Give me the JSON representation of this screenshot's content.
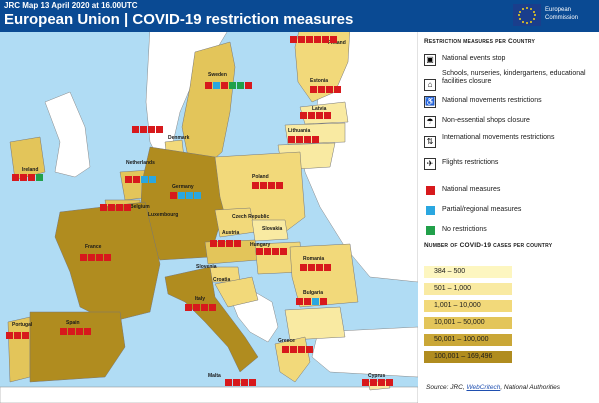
{
  "header": {
    "subtitle": "JRC Map 13 April 2020 at 16.00UTC",
    "title": "European Union | COVID-19 restriction measures",
    "logo_text_line1": "European",
    "logo_text_line2": "Commission"
  },
  "colors": {
    "sea": "#b0dcf4",
    "national": "#d7191c",
    "partial": "#2aa7e0",
    "none": "#21a04a",
    "non_eu": "#ffffff",
    "band_1": "#fdf6c0",
    "band_2": "#f9eaa2",
    "band_3": "#f2d97a",
    "band_4": "#e3c55a",
    "band_5": "#caa737",
    "band_6": "#b08c1f"
  },
  "legend": {
    "measures_title": "Restriction measures per Country",
    "measures": [
      {
        "icon": "national-events-icon",
        "glyph": "▣",
        "label": "National events stop"
      },
      {
        "icon": "school-icon",
        "glyph": "⌂",
        "label": "Schools, nurseries, kindergartens, educational facilities closure"
      },
      {
        "icon": "walking-person-icon",
        "glyph": "♿",
        "label": "National movements restrictions"
      },
      {
        "icon": "shop-icon",
        "glyph": "☂",
        "label": "Non-essential shops closure"
      },
      {
        "icon": "border-icon",
        "glyph": "⇅",
        "label": "International movements restrictions"
      },
      {
        "icon": "plane-icon",
        "glyph": "✈",
        "label": "Flights restrictions"
      }
    ],
    "scopes": [
      {
        "label": "National measures",
        "color": "#d7191c"
      },
      {
        "label": "Partial/regional measures",
        "color": "#2aa7e0"
      },
      {
        "label": "No restrictions",
        "color": "#21a04a"
      }
    ],
    "cases_title": "Number of COVID-19 cases per country",
    "cases_bands": [
      {
        "label": "384 – 500",
        "color": "#fdf6c0"
      },
      {
        "label": "501 – 1,000",
        "color": "#f9eaa2"
      },
      {
        "label": "1,001 – 10,000",
        "color": "#f2d97a"
      },
      {
        "label": "10,001 – 50,000",
        "color": "#e3c55a"
      },
      {
        "label": "50,001 – 100,000",
        "color": "#caa737"
      },
      {
        "label": "100,001 – 169,496",
        "color": "#b08c1f"
      }
    ]
  },
  "countries": [
    {
      "name": "Finland",
      "label": "Finland"
    },
    {
      "name": "Sweden",
      "label": "Sweden"
    },
    {
      "name": "Estonia",
      "label": "Estonia"
    },
    {
      "name": "Latvia",
      "label": "Latvia"
    },
    {
      "name": "Lithuania",
      "label": "Lithuania"
    },
    {
      "name": "Denmark",
      "label": "Denmark"
    },
    {
      "name": "Ireland",
      "label": "Ireland"
    },
    {
      "name": "Netherlands",
      "label": "Netherlands"
    },
    {
      "name": "Belgium",
      "label": "Belgium"
    },
    {
      "name": "Luxembourg",
      "label": "Luxembourg"
    },
    {
      "name": "Germany",
      "label": "Germany"
    },
    {
      "name": "Poland",
      "label": "Poland"
    },
    {
      "name": "Czechia",
      "label": "Czech Republic"
    },
    {
      "name": "Slovakia",
      "label": "Slovakia"
    },
    {
      "name": "Austria",
      "label": "Austria"
    },
    {
      "name": "Hungary",
      "label": "Hungary"
    },
    {
      "name": "Slovenia",
      "label": "Slovenia"
    },
    {
      "name": "Croatia",
      "label": "Croatia"
    },
    {
      "name": "Romania",
      "label": "Romania"
    },
    {
      "name": "Bulgaria",
      "label": "Bulgaria"
    },
    {
      "name": "France",
      "label": "France"
    },
    {
      "name": "Italy",
      "label": "Italy"
    },
    {
      "name": "Portugal",
      "label": "Portugal"
    },
    {
      "name": "Spain",
      "label": "Spain"
    },
    {
      "name": "Greece",
      "label": "Greece"
    },
    {
      "name": "Malta",
      "label": "Malta"
    },
    {
      "name": "Cyprus",
      "label": "Cyprus"
    }
  ],
  "source": {
    "prefix": "Source: JRC, ",
    "link": "WebCritech",
    "suffix": ", National Authorities"
  }
}
